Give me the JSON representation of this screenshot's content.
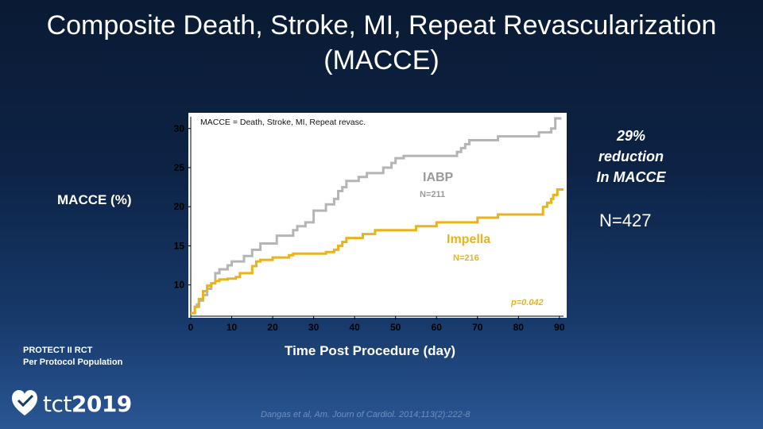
{
  "slide": {
    "title_line1": "Composite Death, Stroke, MI, Repeat Revascularization",
    "title_line2": "(MACCE)",
    "callout_line1": "29%",
    "callout_line2": "reduction",
    "callout_line3": "In MACCE",
    "total_n": "N=427",
    "study_line1": "PROTECT  II RCT",
    "study_line2": "Per Protocol Population",
    "logo_text_main": "tct",
    "logo_text_year": "2019",
    "citation": "Dangas et al, Am. Journ  of Cardiol. 2014;113(2):222-8"
  },
  "chart_data": {
    "type": "line",
    "step": true,
    "title": "",
    "ylabel": "MACCE (%)",
    "xlabel": "Time Post Procedure (day)",
    "xlim": [
      0,
      91
    ],
    "ylim": [
      6,
      31.5
    ],
    "xticks": [
      0,
      10,
      20,
      30,
      40,
      50,
      60,
      70,
      80,
      90
    ],
    "yticks": [
      10,
      15,
      20,
      25,
      30
    ],
    "annotations": {
      "definition": "MACCE = Death, Stroke, MI, Repeat revasc.",
      "p_value": "p=0.042"
    },
    "series": [
      {
        "name": "IABP",
        "n_label": "N=211",
        "color": "#b5b5b5",
        "x": [
          0,
          1,
          1.5,
          2,
          3,
          4,
          5,
          6,
          7,
          9,
          10,
          13,
          15,
          17,
          21,
          25,
          26,
          28,
          30,
          33,
          35,
          36,
          37,
          38,
          41,
          43,
          47,
          49,
          50,
          52,
          53,
          55,
          57,
          60,
          65,
          66,
          67,
          68,
          70,
          73,
          75,
          80,
          85,
          86,
          88,
          89,
          90.5
        ],
        "y": [
          6.4,
          7.2,
          7.5,
          8,
          8.7,
          9.5,
          10.2,
          11.5,
          12,
          12.5,
          13,
          13.7,
          14.5,
          15.3,
          16.3,
          17,
          17.5,
          18,
          19.5,
          20.3,
          21,
          22,
          22.5,
          23.3,
          23.8,
          24.3,
          25,
          25.6,
          26.2,
          26.5,
          26.5,
          26.5,
          26.5,
          26.5,
          27,
          27.5,
          28,
          28.5,
          28.5,
          28.5,
          29,
          29,
          29.5,
          29.5,
          30,
          31.3,
          31.3
        ]
      },
      {
        "name": "Impella",
        "n_label": "N=216",
        "color": "#e9b31c",
        "x": [
          0,
          1,
          2,
          3,
          4,
          5,
          6,
          7,
          9,
          11,
          12,
          15,
          16,
          17,
          20,
          24,
          25,
          28,
          30,
          33,
          35,
          36,
          37,
          38,
          42,
          45,
          55,
          60,
          70,
          75,
          86,
          87,
          88,
          88.5,
          89.5,
          91
        ],
        "y": [
          6.4,
          7.2,
          8.2,
          9.2,
          9.9,
          10.2,
          10.5,
          10.7,
          10.8,
          11,
          11.5,
          12.4,
          13,
          13.2,
          13.5,
          13.8,
          14,
          14,
          14,
          14.2,
          14.5,
          15,
          15.5,
          16,
          16.5,
          17,
          17.5,
          18,
          18.6,
          19,
          20,
          20.5,
          21,
          21.5,
          22.2,
          22.2
        ]
      }
    ]
  }
}
